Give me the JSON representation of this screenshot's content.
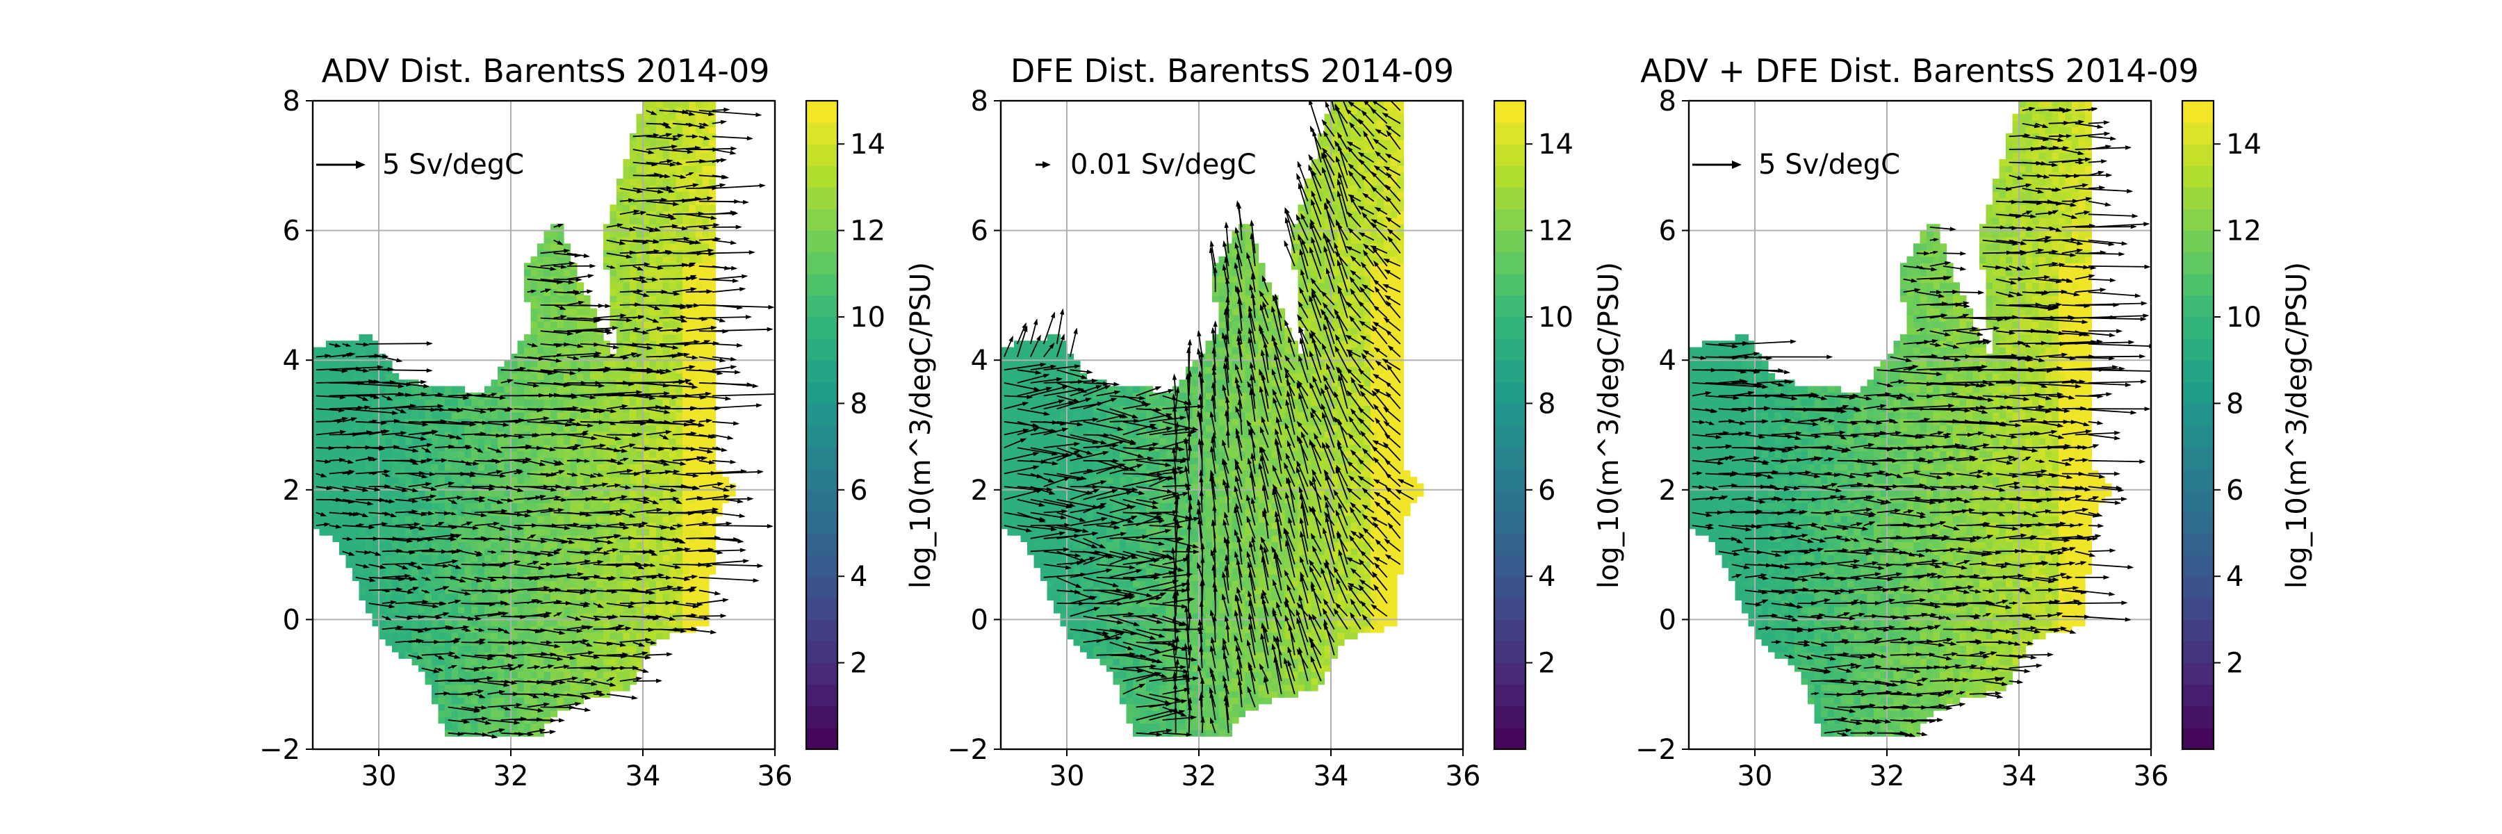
{
  "figure": {
    "background": "#ffffff"
  },
  "chart_data": [
    {
      "type": "heatmap",
      "title": "ADV Dist. BarentsS 2014-09",
      "xlim": [
        29,
        36
      ],
      "ylim": [
        -2,
        8
      ],
      "xticks": [
        30,
        32,
        34,
        36
      ],
      "yticks": [
        -2,
        0,
        2,
        4,
        6,
        8
      ],
      "grid": true,
      "quiver_key": {
        "label": "5 Sv/degC"
      },
      "colorbar": {
        "label": "log_10(m^3/degC/PSU)",
        "range": [
          0,
          15
        ],
        "ticks": [
          2,
          4,
          6,
          8,
          10,
          12,
          14
        ],
        "colormap": "viridis"
      },
      "field": "advection",
      "description_of_distribution": "salinity 30-35.5 PSU, temperature -2 to 8 degC; arrows mostly eastward"
    },
    {
      "type": "heatmap",
      "title": "DFE Dist. BarentsS 2014-09",
      "xlim": [
        29,
        36
      ],
      "ylim": [
        -2,
        8
      ],
      "xticks": [
        30,
        32,
        34,
        36
      ],
      "yticks": [
        -2,
        0,
        2,
        4,
        6,
        8
      ],
      "grid": true,
      "quiver_key": {
        "label": "0.01 Sv/degC"
      },
      "colorbar": {
        "label": "log_10(m^3/degC/PSU)",
        "range": [
          0,
          15
        ],
        "ticks": [
          2,
          4,
          6,
          8,
          10,
          12,
          14
        ],
        "colormap": "viridis"
      },
      "field": "diffusion",
      "description_of_distribution": "arrows mostly vertical and converging near S=31.5"
    },
    {
      "type": "heatmap",
      "title": "ADV + DFE Dist. BarentsS 2014-09",
      "xlim": [
        29,
        36
      ],
      "ylim": [
        -2,
        8
      ],
      "xticks": [
        30,
        32,
        34,
        36
      ],
      "yticks": [
        -2,
        0,
        2,
        4,
        6,
        8
      ],
      "grid": true,
      "quiver_key": {
        "label": "5 Sv/degC"
      },
      "colorbar": {
        "label": "log_10(m^3/degC/PSU)",
        "range": [
          0,
          15
        ],
        "ticks": [
          2,
          4,
          6,
          8,
          10,
          12,
          14
        ],
        "colormap": "viridis"
      },
      "field": "advection",
      "description_of_distribution": "same as ADV panel"
    }
  ]
}
